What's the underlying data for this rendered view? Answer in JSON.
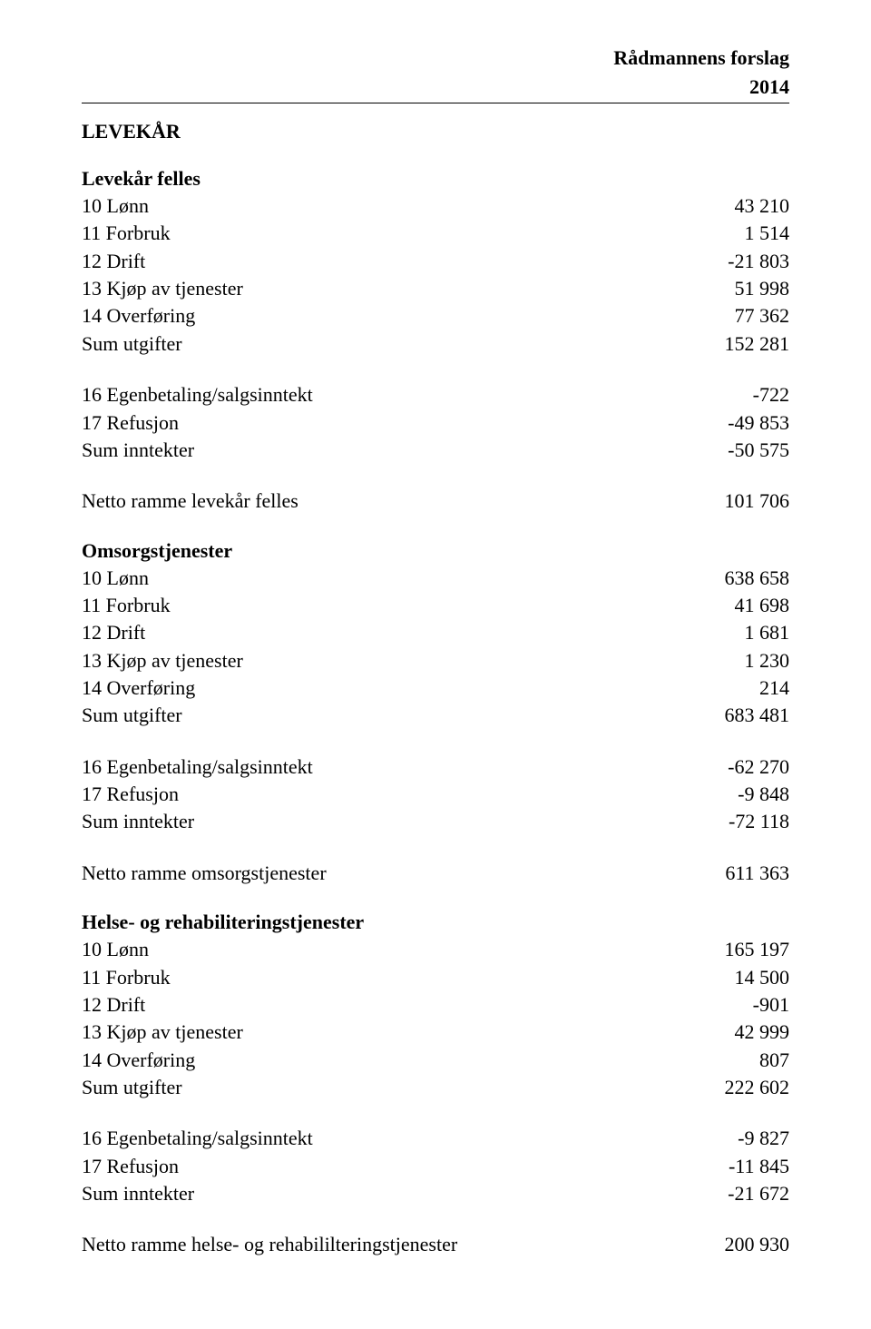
{
  "header": {
    "line1": "Rådmannens forslag",
    "line2": "2014"
  },
  "main_section": "LEVEKÅR",
  "sections": [
    {
      "title": "Levekår felles",
      "rows_ut": [
        {
          "label": "10 Lønn",
          "value": "43 210"
        },
        {
          "label": "11 Forbruk",
          "value": "1 514"
        },
        {
          "label": "12 Drift",
          "value": "-21 803"
        },
        {
          "label": "13 Kjøp av tjenester",
          "value": "51 998"
        },
        {
          "label": "14 Overføring",
          "value": "77 362"
        },
        {
          "label": "Sum utgifter",
          "value": "152 281"
        }
      ],
      "rows_inn": [
        {
          "label": "16 Egenbetaling/salgsinntekt",
          "value": "-722"
        },
        {
          "label": "17 Refusjon",
          "value": "-49 853"
        },
        {
          "label": "Sum inntekter",
          "value": "-50 575"
        }
      ],
      "netto": {
        "label": "Netto ramme levekår felles",
        "value": "101 706"
      }
    },
    {
      "title": "Omsorgstjenester",
      "rows_ut": [
        {
          "label": "10 Lønn",
          "value": "638 658"
        },
        {
          "label": "11 Forbruk",
          "value": "41 698"
        },
        {
          "label": "12 Drift",
          "value": "1 681"
        },
        {
          "label": "13 Kjøp av tjenester",
          "value": "1 230"
        },
        {
          "label": "14 Overføring",
          "value": "214"
        },
        {
          "label": "Sum utgifter",
          "value": "683 481"
        }
      ],
      "rows_inn": [
        {
          "label": "16 Egenbetaling/salgsinntekt",
          "value": "-62 270"
        },
        {
          "label": "17 Refusjon",
          "value": "-9 848"
        },
        {
          "label": "Sum inntekter",
          "value": "-72 118"
        }
      ],
      "netto": {
        "label": "Netto ramme omsorgstjenester",
        "value": "611 363"
      }
    },
    {
      "title": "Helse- og rehabiliteringstjenester",
      "rows_ut": [
        {
          "label": "10 Lønn",
          "value": "165 197"
        },
        {
          "label": "11 Forbruk",
          "value": "14 500"
        },
        {
          "label": "12 Drift",
          "value": "-901"
        },
        {
          "label": "13 Kjøp av tjenester",
          "value": "42 999"
        },
        {
          "label": "14 Overføring",
          "value": "807"
        },
        {
          "label": "Sum utgifter",
          "value": "222 602"
        }
      ],
      "rows_inn": [
        {
          "label": "16 Egenbetaling/salgsinntekt",
          "value": "-9 827"
        },
        {
          "label": "17 Refusjon",
          "value": "-11 845"
        },
        {
          "label": "Sum inntekter",
          "value": "-21 672"
        }
      ],
      "netto": {
        "label": "Netto ramme helse- og rehabililteringstjenester",
        "value": "200 930"
      }
    }
  ]
}
